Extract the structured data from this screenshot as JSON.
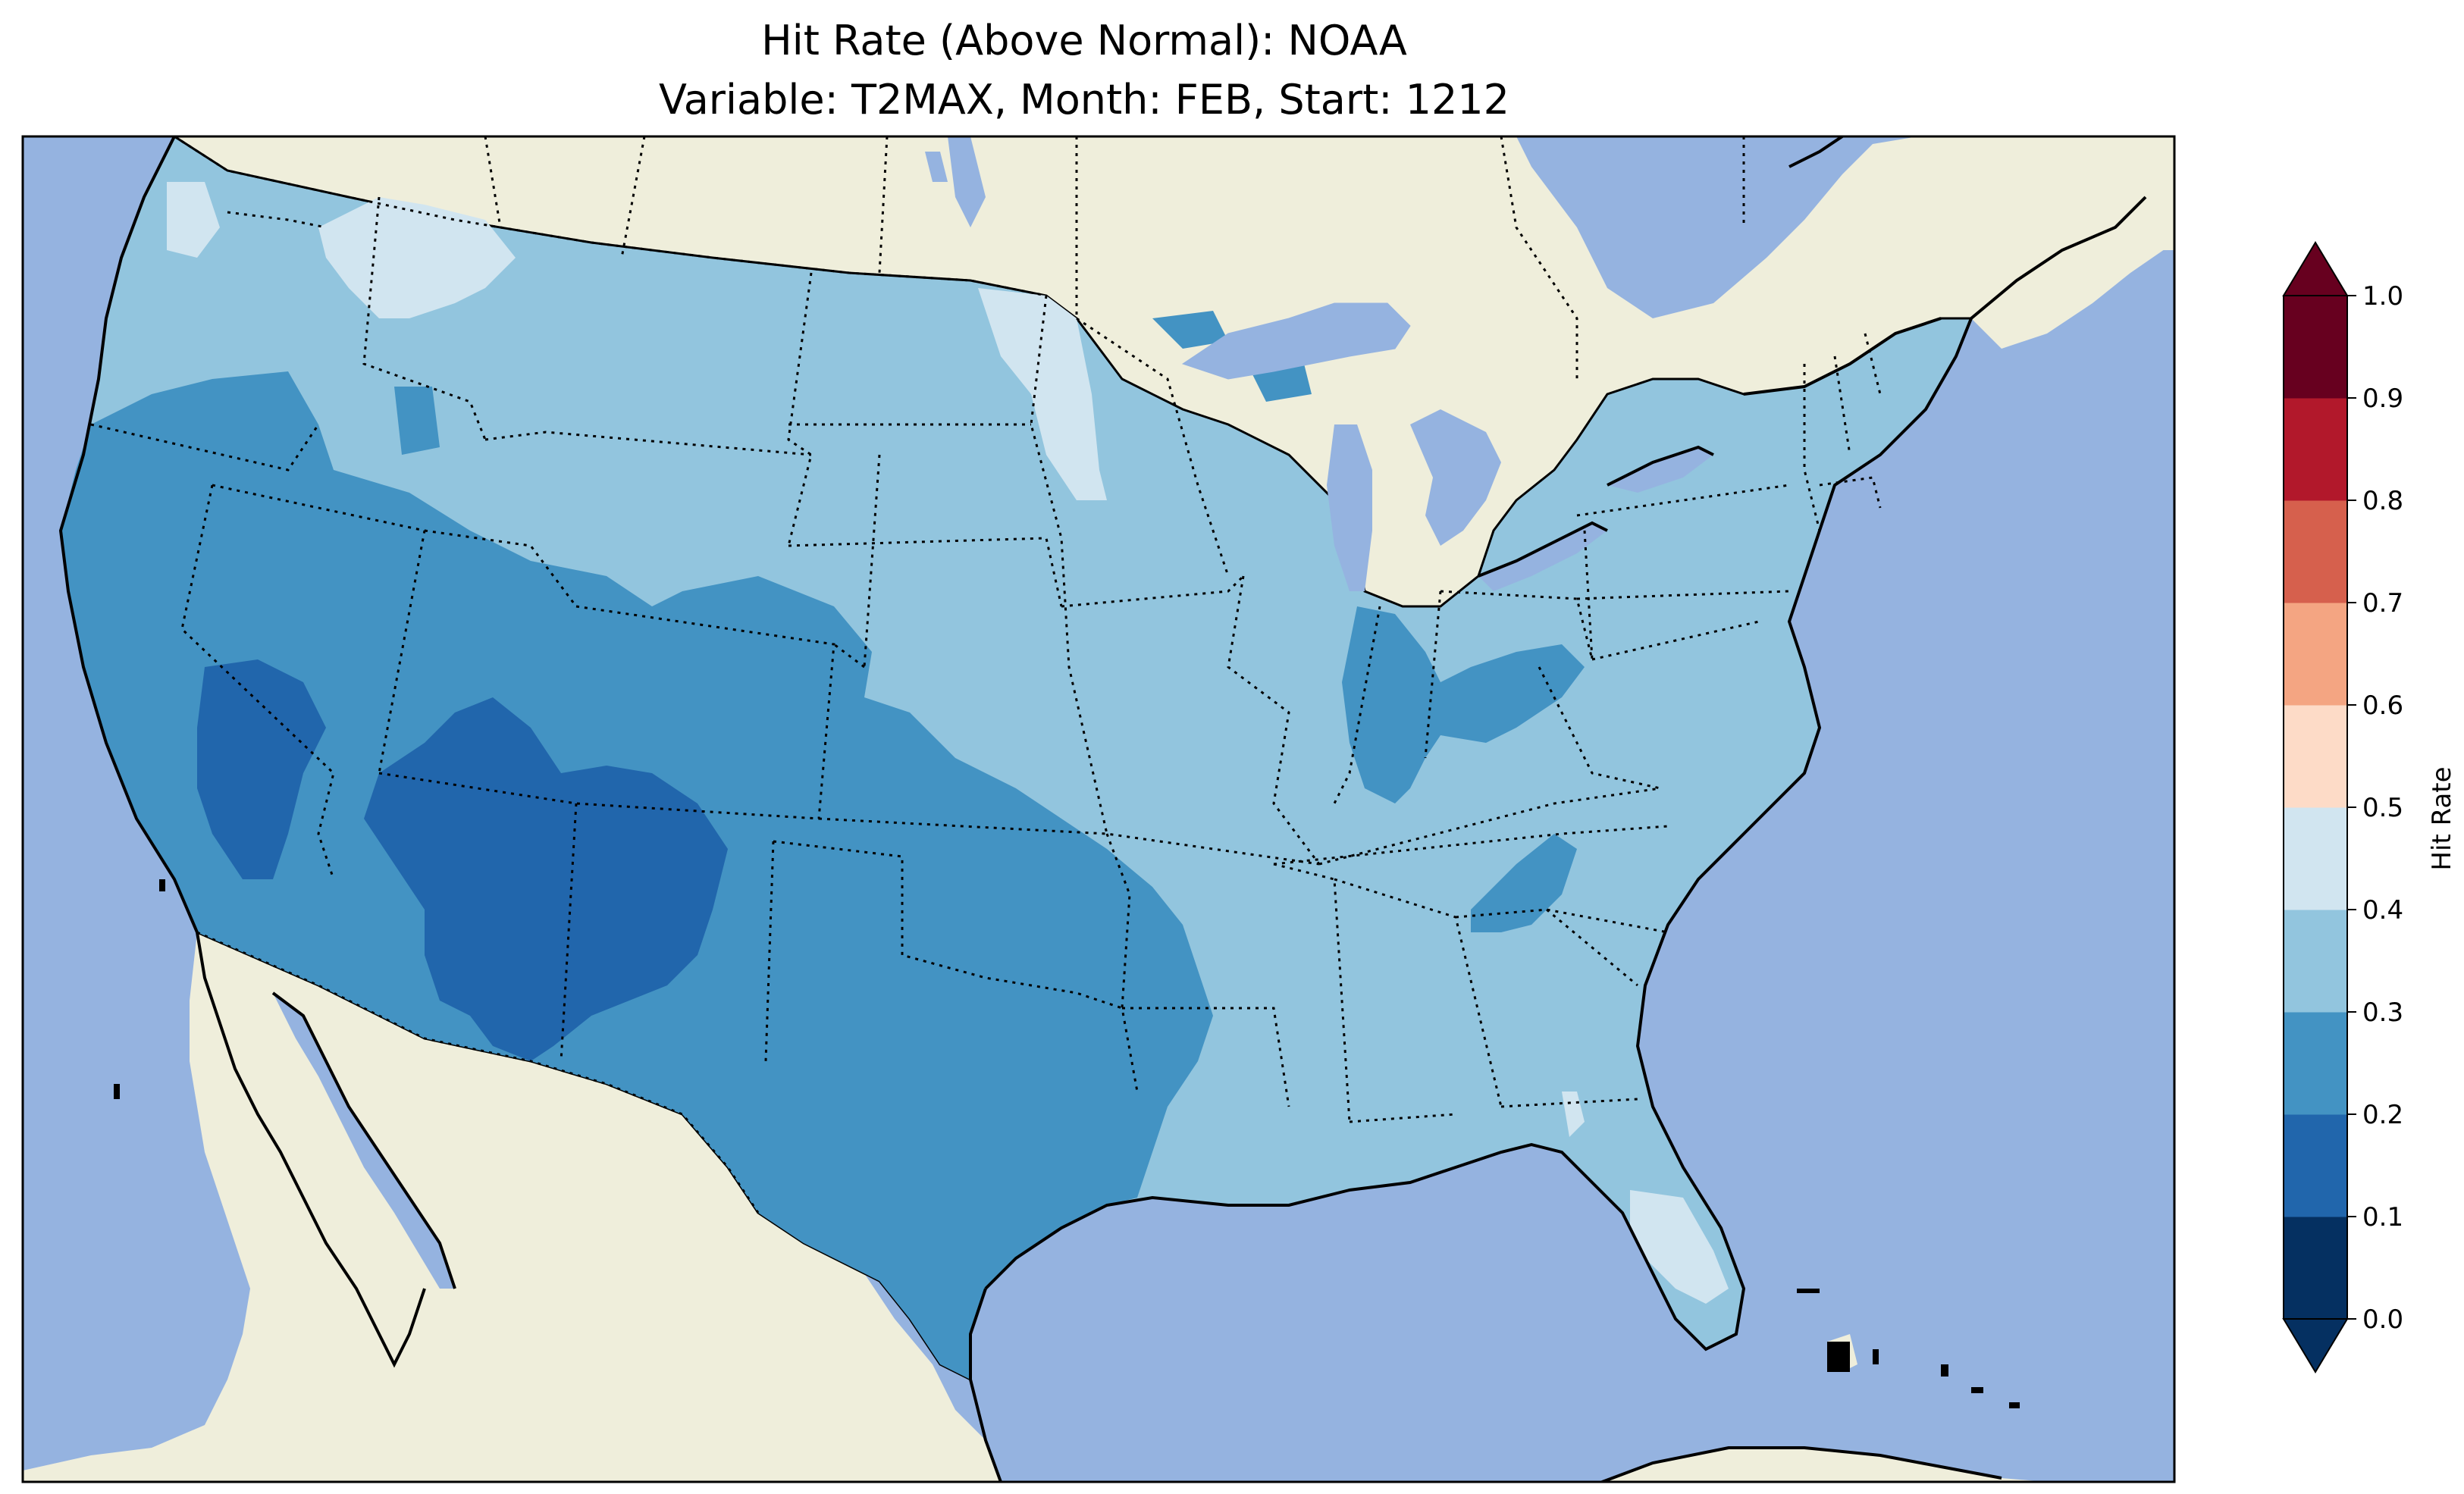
{
  "title": {
    "line1": "Hit Rate (Above Normal): NOAA",
    "line2": "Variable: T2MAX, Month: FEB, Start: 1212"
  },
  "map": {
    "colors": {
      "ocean": "#95b3e0",
      "land": "#efeedb",
      "lakes": "#95b3e0",
      "coastline": "#000000",
      "borders": "#000000"
    }
  },
  "colorbar": {
    "label": "Hit Rate",
    "ticks": [
      "0.0",
      "0.1",
      "0.2",
      "0.3",
      "0.4",
      "0.5",
      "0.6",
      "0.7",
      "0.8",
      "0.9",
      "1.0"
    ],
    "colors": [
      "#053061",
      "#2166ac",
      "#4393c3",
      "#92c5de",
      "#d1e5f0",
      "#fddbc7",
      "#f4a582",
      "#d6604d",
      "#b2182b",
      "#67001f"
    ],
    "under_color": "#053061",
    "over_color": "#67001f",
    "extend": "both"
  },
  "chart_data": {
    "type": "heatmap",
    "title": "Hit Rate (Above Normal): NOAA",
    "subtitle": "Variable: T2MAX, Month: FEB, Start: 1212",
    "colorbar_label": "Hit Rate",
    "value_range": [
      0.0,
      1.0
    ],
    "bins": [
      0.0,
      0.1,
      0.2,
      0.3,
      0.4,
      0.5,
      0.6,
      0.7,
      0.8,
      0.9,
      1.0
    ],
    "regions": [
      {
        "area": "Pacific Northwest interior",
        "value_bin": [
          0.3,
          0.4
        ]
      },
      {
        "area": "Northern Rockies / Idaho panhandle",
        "value_bin": [
          0.4,
          0.5
        ]
      },
      {
        "area": "California / Nevada",
        "value_bin": [
          0.2,
          0.3
        ]
      },
      {
        "area": "Great Basin core",
        "value_bin": [
          0.1,
          0.2
        ]
      },
      {
        "area": "Four Corners / Arizona / New Mexico",
        "value_bin": [
          0.1,
          0.2
        ]
      },
      {
        "area": "Colorado / Utah",
        "value_bin": [
          0.2,
          0.3
        ]
      },
      {
        "area": "Texas / Oklahoma",
        "value_bin": [
          0.2,
          0.3
        ]
      },
      {
        "area": "Northern Plains",
        "value_bin": [
          0.3,
          0.4
        ]
      },
      {
        "area": "Eastern North Dakota / Red River",
        "value_bin": [
          0.4,
          0.5
        ]
      },
      {
        "area": "Midwest / Great Lakes",
        "value_bin": [
          0.3,
          0.4
        ]
      },
      {
        "area": "Indiana / Ohio",
        "value_bin": [
          0.2,
          0.3
        ]
      },
      {
        "area": "Southeast / Atlantic",
        "value_bin": [
          0.3,
          0.4
        ]
      },
      {
        "area": "Florida peninsula",
        "value_bin": [
          0.4,
          0.5
        ]
      },
      {
        "area": "Northeast",
        "value_bin": [
          0.3,
          0.4
        ]
      }
    ]
  }
}
